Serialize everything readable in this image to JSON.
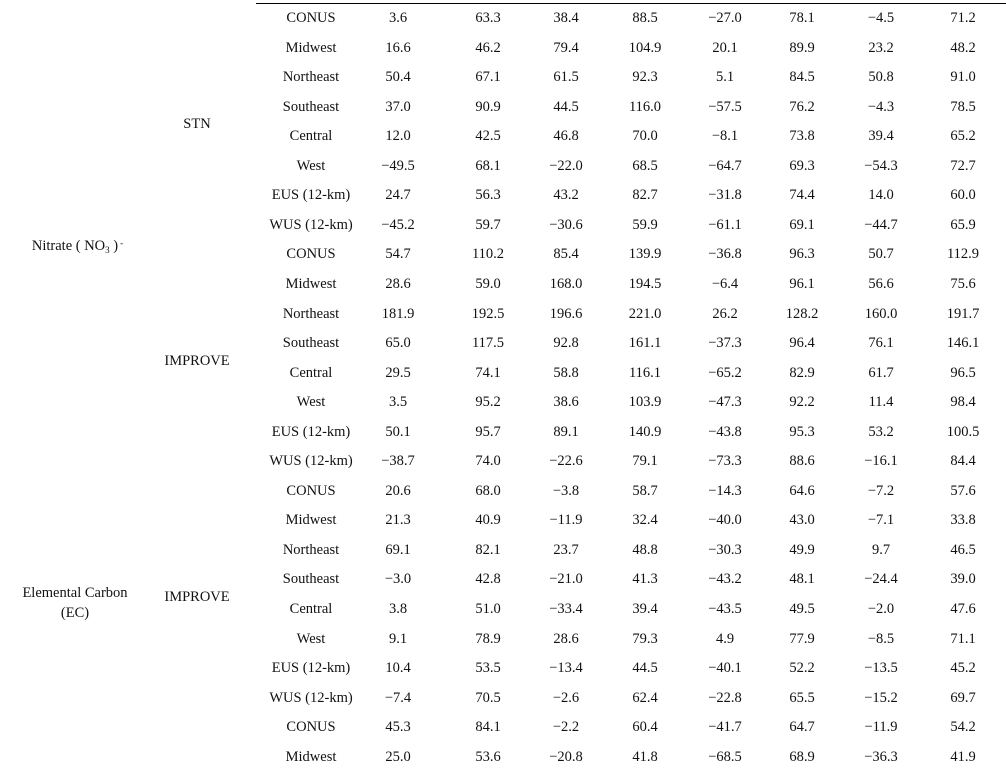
{
  "groups": [
    {
      "species_label": "Nitrate ( NO",
      "species_sub": "3",
      "species_sup": "-",
      "species_suffix": " )",
      "networks": [
        {
          "name": "STN",
          "rows": [
            {
              "region": "CONUS",
              "values": [
                "3.6",
                "63.3",
                "38.4",
                "88.5",
                "−27.0",
                "78.1",
                "−4.5",
                "71.2"
              ]
            },
            {
              "region": "Midwest",
              "values": [
                "16.6",
                "46.2",
                "79.4",
                "104.9",
                "20.1",
                "89.9",
                "23.2",
                "48.2"
              ]
            },
            {
              "region": "Northeast",
              "values": [
                "50.4",
                "67.1",
                "61.5",
                "92.3",
                "5.1",
                "84.5",
                "50.8",
                "91.0"
              ]
            },
            {
              "region": "Southeast",
              "values": [
                "37.0",
                "90.9",
                "44.5",
                "116.0",
                "−57.5",
                "76.2",
                "−4.3",
                "78.5"
              ]
            },
            {
              "region": "Central",
              "values": [
                "12.0",
                "42.5",
                "46.8",
                "70.0",
                "−8.1",
                "73.8",
                "39.4",
                "65.2"
              ]
            },
            {
              "region": "West",
              "values": [
                "−49.5",
                "68.1",
                "−22.0",
                "68.5",
                "−64.7",
                "69.3",
                "−54.3",
                "72.7"
              ]
            },
            {
              "region": "EUS (12-km)",
              "values": [
                "24.7",
                "56.3",
                "43.2",
                "82.7",
                "−31.8",
                "74.4",
                "14.0",
                "60.0"
              ]
            },
            {
              "region": "WUS (12-km)",
              "values": [
                "−45.2",
                "59.7",
                "−30.6",
                "59.9",
                "−61.1",
                "69.1",
                "−44.7",
                "65.9"
              ]
            }
          ]
        },
        {
          "name": "IMPROVE",
          "rows": [
            {
              "region": "CONUS",
              "values": [
                "54.7",
                "110.2",
                "85.4",
                "139.9",
                "−36.8",
                "96.3",
                "50.7",
                "112.9"
              ]
            },
            {
              "region": "Midwest",
              "values": [
                "28.6",
                "59.0",
                "168.0",
                "194.5",
                "−6.4",
                "96.1",
                "56.6",
                "75.6"
              ]
            },
            {
              "region": "Northeast",
              "values": [
                "181.9",
                "192.5",
                "196.6",
                "221.0",
                "26.2",
                "128.2",
                "160.0",
                "191.7"
              ]
            },
            {
              "region": "Southeast",
              "values": [
                "65.0",
                "117.5",
                "92.8",
                "161.1",
                "−37.3",
                "96.4",
                "76.1",
                "146.1"
              ]
            },
            {
              "region": "Central",
              "values": [
                "29.5",
                "74.1",
                "58.8",
                "116.1",
                "−65.2",
                "82.9",
                "61.7",
                "96.5"
              ]
            },
            {
              "region": "West",
              "values": [
                "3.5",
                "95.2",
                "38.6",
                "103.9",
                "−47.3",
                "92.2",
                "11.4",
                "98.4"
              ]
            },
            {
              "region": "EUS (12-km)",
              "values": [
                "50.1",
                "95.7",
                "89.1",
                "140.9",
                "−43.8",
                "95.3",
                "53.2",
                "100.5"
              ]
            },
            {
              "region": "WUS (12-km)",
              "values": [
                "−38.7",
                "74.0",
                "−22.6",
                "79.1",
                "−73.3",
                "88.6",
                "−16.1",
                "84.4"
              ]
            }
          ]
        }
      ]
    },
    {
      "species_line1": "Elemental Carbon",
      "species_line2": "(EC)",
      "networks": [
        {
          "name": "IMPROVE",
          "rows": [
            {
              "region": "CONUS",
              "values": [
                "20.6",
                "68.0",
                "−3.8",
                "58.7",
                "−14.3",
                "64.6",
                "−7.2",
                "57.6"
              ]
            },
            {
              "region": "Midwest",
              "values": [
                "21.3",
                "40.9",
                "−11.9",
                "32.4",
                "−40.0",
                "43.0",
                "−7.1",
                "33.8"
              ]
            },
            {
              "region": "Northeast",
              "values": [
                "69.1",
                "82.1",
                "23.7",
                "48.8",
                "−30.3",
                "49.9",
                "9.7",
                "46.5"
              ]
            },
            {
              "region": "Southeast",
              "values": [
                "−3.0",
                "42.8",
                "−21.0",
                "41.3",
                "−43.2",
                "48.1",
                "−24.4",
                "39.0"
              ]
            },
            {
              "region": "Central",
              "values": [
                "3.8",
                "51.0",
                "−33.4",
                "39.4",
                "−43.5",
                "49.5",
                "−2.0",
                "47.6"
              ]
            },
            {
              "region": "West",
              "values": [
                "9.1",
                "78.9",
                "28.6",
                "79.3",
                "4.9",
                "77.9",
                "−8.5",
                "71.1"
              ]
            },
            {
              "region": "EUS (12-km)",
              "values": [
                "10.4",
                "53.5",
                "−13.4",
                "44.5",
                "−40.1",
                "52.2",
                "−13.5",
                "45.2"
              ]
            },
            {
              "region": "WUS (12-km)",
              "values": [
                "−7.4",
                "70.5",
                "−2.6",
                "62.4",
                "−22.8",
                "65.5",
                "−15.2",
                "69.7"
              ]
            }
          ]
        }
      ]
    }
  ],
  "trailing_rows": [
    {
      "region": "CONUS",
      "values": [
        "45.3",
        "84.1",
        "−2.2",
        "60.4",
        "−41.7",
        "64.7",
        "−11.9",
        "54.2"
      ]
    },
    {
      "region": "Midwest",
      "values": [
        "25.0",
        "53.6",
        "−20.8",
        "41.8",
        "−68.5",
        "68.9",
        "−36.3",
        "41.9"
      ]
    }
  ]
}
